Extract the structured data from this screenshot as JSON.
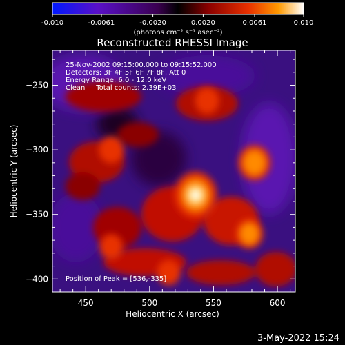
{
  "colorbar": {
    "ticks": [
      "-0.010",
      "-0.0061",
      "-0.0020",
      "0.0020",
      "0.0061",
      "0.010"
    ],
    "tick_values": [
      -0.01,
      -0.0061,
      -0.002,
      0.002,
      0.0061,
      0.01
    ],
    "range": [
      -0.01,
      0.01
    ],
    "unit_label": "(photons cm⁻² s⁻¹ asec⁻²)",
    "colors": [
      "#0018ff",
      "#5a10c8",
      "#3a0050",
      "#8a0000",
      "#e83000",
      "#ff9a00",
      "#ffff80",
      "#ffffff"
    ]
  },
  "chart_data": {
    "type": "heatmap",
    "title": "Reconstructed RHESSI Image",
    "xlabel": "Heliocentric X (arcsec)",
    "ylabel": "Heliocentric Y (arcsec)",
    "xlim": [
      424,
      614
    ],
    "ylim": [
      -410,
      -223
    ],
    "x_ticks": [
      450,
      500,
      550,
      600
    ],
    "y_ticks": [
      -250,
      -300,
      -350,
      -400
    ],
    "annotations": [
      "25-Nov-2002 09:15:00.000 to 09:15:52.000",
      "Detectors: 3F 4F 5F 6F 7F 8F, Att 0",
      "Energy Range: 6.0 - 12.0 keV",
      "Clean     Total counts: 2.39E+03"
    ],
    "peak_label": "Position of Peak = [536,-335]",
    "peak": [
      536,
      -335
    ],
    "bright_sources": [
      {
        "x": 536,
        "y": -335,
        "level": 1.0
      },
      {
        "x": 582,
        "y": -310,
        "level": 0.62
      },
      {
        "x": 578,
        "y": -365,
        "level": 0.45
      },
      {
        "x": 470,
        "y": -300,
        "level": 0.35
      },
      {
        "x": 545,
        "y": -262,
        "level": 0.33
      },
      {
        "x": 470,
        "y": -375,
        "level": 0.3
      },
      {
        "x": 515,
        "y": -395,
        "level": 0.3
      }
    ],
    "grid": false
  },
  "footer": {
    "date": "3-May-2022 15:24"
  }
}
